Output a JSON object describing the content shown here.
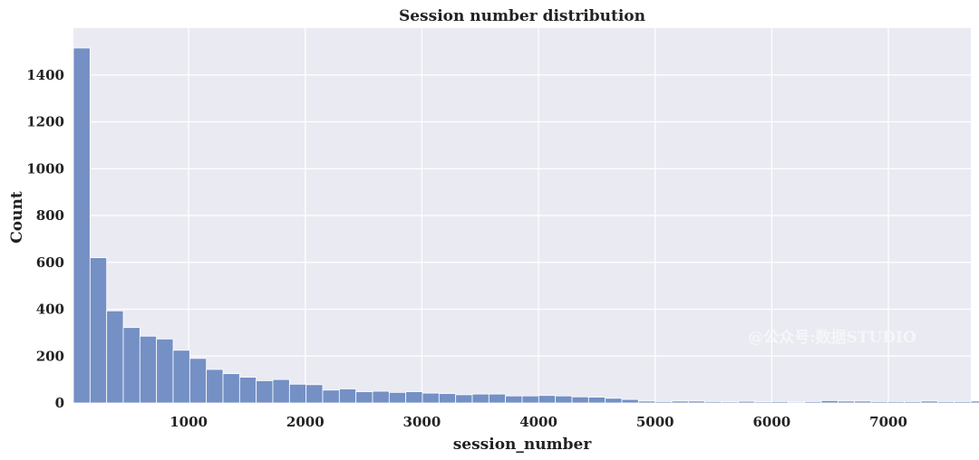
{
  "chart_data": {
    "type": "bar",
    "title": "Session number distribution",
    "xlabel": "session_number",
    "ylabel": "Count",
    "bin_width": 142.5,
    "x_start": 12,
    "xlim": [
      12,
      7707
    ],
    "ylim": [
      0,
      1600
    ],
    "xticks": [
      1000,
      2000,
      3000,
      4000,
      5000,
      6000,
      7000
    ],
    "yticks": [
      0,
      200,
      400,
      600,
      800,
      1000,
      1200,
      1400
    ],
    "values": [
      1515,
      620,
      393,
      322,
      285,
      273,
      225,
      190,
      143,
      125,
      110,
      95,
      100,
      80,
      78,
      55,
      60,
      48,
      50,
      45,
      48,
      42,
      40,
      35,
      38,
      38,
      30,
      30,
      32,
      30,
      26,
      25,
      20,
      15,
      8,
      6,
      8,
      8,
      6,
      5,
      7,
      5,
      6,
      4,
      6,
      10,
      8,
      8,
      6,
      6,
      6,
      8,
      6,
      6,
      8
    ],
    "grid": true,
    "background_color": "#EAEAF2",
    "bar_color": "#6E8BC2",
    "watermark": "@公众号:数据STUDIO"
  }
}
